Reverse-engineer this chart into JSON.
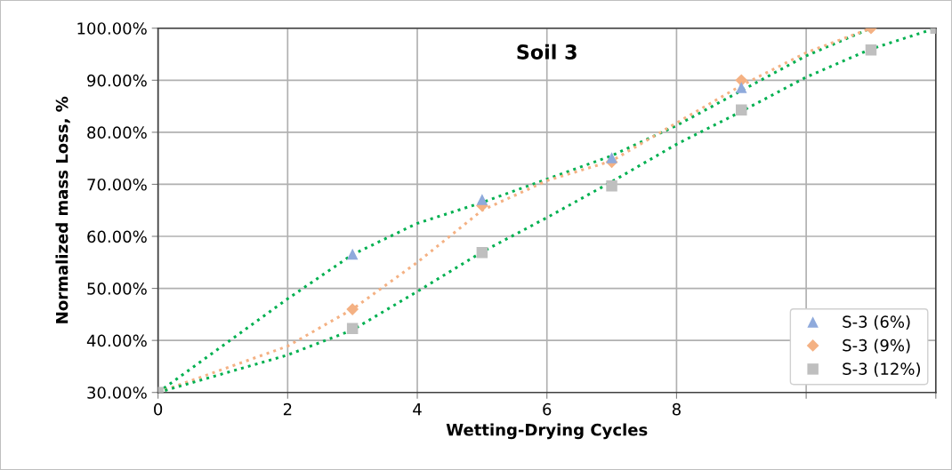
{
  "chart_data": {
    "type": "scatter",
    "title": "Soil 3",
    "xlabel": "Wetting-Drying Cycles",
    "ylabel": "Normalized mass Loss, %",
    "xlim": [
      0,
      12
    ],
    "xticks": [
      0,
      2,
      4,
      6,
      8,
      {
        "value": 10,
        "label": null
      },
      {
        "value": 12,
        "label": null
      }
    ],
    "ylim": [
      30,
      100
    ],
    "yticks": [
      {
        "value": 30,
        "label": "30.00%"
      },
      {
        "value": 40,
        "label": "40.00%"
      },
      {
        "value": 50,
        "label": "50.00%"
      },
      {
        "value": 60,
        "label": "60.00%"
      },
      {
        "value": 70,
        "label": "70.00%"
      },
      {
        "value": 80,
        "label": "80.00%"
      },
      {
        "value": 90,
        "label": "90.00%"
      },
      {
        "value": 100,
        "label": "100.00%"
      }
    ],
    "grid": true,
    "legend": "bottom right",
    "series": [
      {
        "type": "line",
        "color": "#00b050",
        "line_style": "dotted",
        "marker": "none",
        "x": [
          0,
          2,
          3,
          4,
          5,
          6,
          7,
          8,
          9,
          10,
          11
        ],
        "values": [
          30,
          48,
          56.5,
          62.5,
          66.5,
          71,
          75.5,
          81.3,
          88,
          94.7,
          100
        ]
      },
      {
        "type": "line",
        "color": "#f4b183",
        "line_style": "dotted",
        "marker": "none",
        "x": [
          0,
          2,
          3,
          4,
          5,
          6,
          7,
          8,
          9,
          10,
          11
        ],
        "values": [
          30,
          38.9,
          46,
          55,
          65,
          70.7,
          74.5,
          81.8,
          89,
          95.3,
          100
        ]
      },
      {
        "type": "line",
        "color": "#00b050",
        "line_style": "dotted",
        "marker": "none",
        "x": [
          0,
          2,
          3,
          4,
          5,
          6,
          7,
          8,
          9,
          10,
          11,
          12
        ],
        "values": [
          30,
          37.2,
          42,
          49.4,
          57,
          63.6,
          70.5,
          77.7,
          84,
          90.6,
          96,
          100
        ]
      },
      {
        "name": "S-3 (6%)",
        "color": "#8faadc",
        "marker": "triangle",
        "x": [
          3,
          5,
          7,
          9
        ],
        "values": [
          56.6,
          67.1,
          75.1,
          88.6
        ]
      },
      {
        "name": "S-3 (9%)",
        "color": "#f4b183",
        "marker": "diamond",
        "x": [
          3,
          5,
          7,
          9,
          11
        ],
        "values": [
          46,
          65.9,
          74.3,
          90,
          100
        ]
      },
      {
        "name": "S-3 (12%)",
        "color": "#bfbfbf",
        "marker": "square",
        "x": [
          0,
          3,
          5,
          7,
          9,
          11,
          12
        ],
        "values": [
          30,
          42.3,
          56.9,
          69.7,
          84.3,
          95.8,
          100
        ]
      }
    ]
  }
}
